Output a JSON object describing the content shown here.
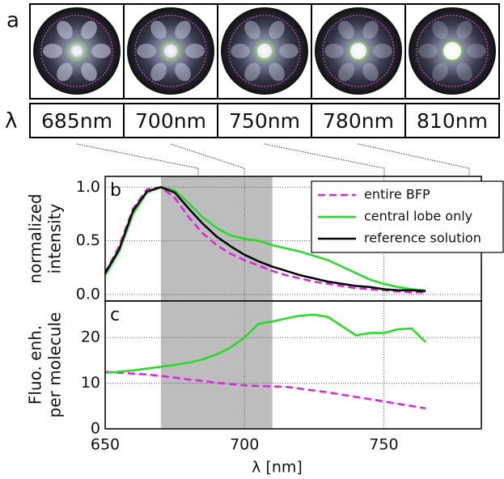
{
  "panel_a": {
    "label": "a",
    "lambda": "λ",
    "images": [
      "685nm",
      "700nm",
      "750nm",
      "780nm",
      "810nm"
    ]
  },
  "chart_data": [
    {
      "type": "line",
      "panel_label": "b",
      "ylabel": [
        "normalized",
        "intensity"
      ],
      "x": [
        650,
        655,
        660,
        665,
        670,
        675,
        680,
        685,
        690,
        695,
        700,
        705,
        710,
        715,
        720,
        725,
        730,
        735,
        740,
        745,
        750,
        755,
        760,
        765
      ],
      "series": [
        {
          "name": "entire BFP",
          "color": "#e020e0",
          "dashed": true,
          "values": [
            0.2,
            0.45,
            0.8,
            0.98,
            1.0,
            0.9,
            0.72,
            0.57,
            0.46,
            0.38,
            0.32,
            0.27,
            0.22,
            0.18,
            0.15,
            0.12,
            0.1,
            0.08,
            0.06,
            0.05,
            0.04,
            0.03,
            0.02,
            0.02
          ]
        },
        {
          "name": "central lobe only",
          "color": "#22dd22",
          "dashed": false,
          "values": [
            0.18,
            0.4,
            0.75,
            0.95,
            1.0,
            0.97,
            0.85,
            0.72,
            0.62,
            0.55,
            0.52,
            0.5,
            0.46,
            0.43,
            0.4,
            0.36,
            0.32,
            0.26,
            0.2,
            0.14,
            0.1,
            0.07,
            0.05,
            0.04
          ]
        },
        {
          "name": "reference solution",
          "color": "#000000",
          "dashed": false,
          "values": [
            0.2,
            0.42,
            0.78,
            0.96,
            1.0,
            0.95,
            0.8,
            0.66,
            0.54,
            0.45,
            0.37,
            0.31,
            0.26,
            0.22,
            0.18,
            0.15,
            0.12,
            0.1,
            0.08,
            0.07,
            0.05,
            0.04,
            0.04,
            0.03
          ]
        }
      ],
      "xlim": [
        650,
        785
      ],
      "xticks": [
        650,
        700,
        750
      ],
      "ylim": [
        -0.06,
        1.1
      ],
      "yticks": [
        {
          "value": 0,
          "label": "0.0"
        },
        {
          "value": 0.5,
          "label": "0.5"
        },
        {
          "value": 1,
          "label": "1.0"
        }
      ],
      "shaded_span": [
        670,
        710
      ],
      "grid": true,
      "legend": "upper right"
    },
    {
      "type": "line",
      "panel_label": "c",
      "ylabel": [
        "Fluo. enh.",
        "per molecule"
      ],
      "xlabel": "λ [nm]",
      "x": [
        650,
        655,
        660,
        665,
        670,
        675,
        680,
        685,
        690,
        695,
        700,
        705,
        710,
        715,
        720,
        725,
        730,
        735,
        740,
        745,
        750,
        755,
        760,
        765
      ],
      "series": [
        {
          "color": "#e020e0",
          "dashed": true,
          "values": [
            12.5,
            12.3,
            12.1,
            11.9,
            11.6,
            11.2,
            10.8,
            10.5,
            10.1,
            9.8,
            9.5,
            9.4,
            9.3,
            9.2,
            8.8,
            8.4,
            8.0,
            7.5,
            7.0,
            6.5,
            6.0,
            5.5,
            5.0,
            4.5
          ]
        },
        {
          "color": "#22dd22",
          "dashed": false,
          "values": [
            12.3,
            12.5,
            12.8,
            13.2,
            13.6,
            14,
            14.5,
            15.2,
            16.3,
            17.8,
            20,
            23,
            23.5,
            24.2,
            24.8,
            25,
            24.5,
            22.5,
            20.5,
            21,
            21,
            21.8,
            22,
            19
          ]
        }
      ],
      "xlim": [
        650,
        785
      ],
      "xticks": [
        650,
        700,
        750
      ],
      "ylim": [
        0,
        28
      ],
      "yticks": [
        0,
        10,
        20
      ],
      "shaded_span": [
        670,
        710
      ],
      "grid": true
    }
  ]
}
